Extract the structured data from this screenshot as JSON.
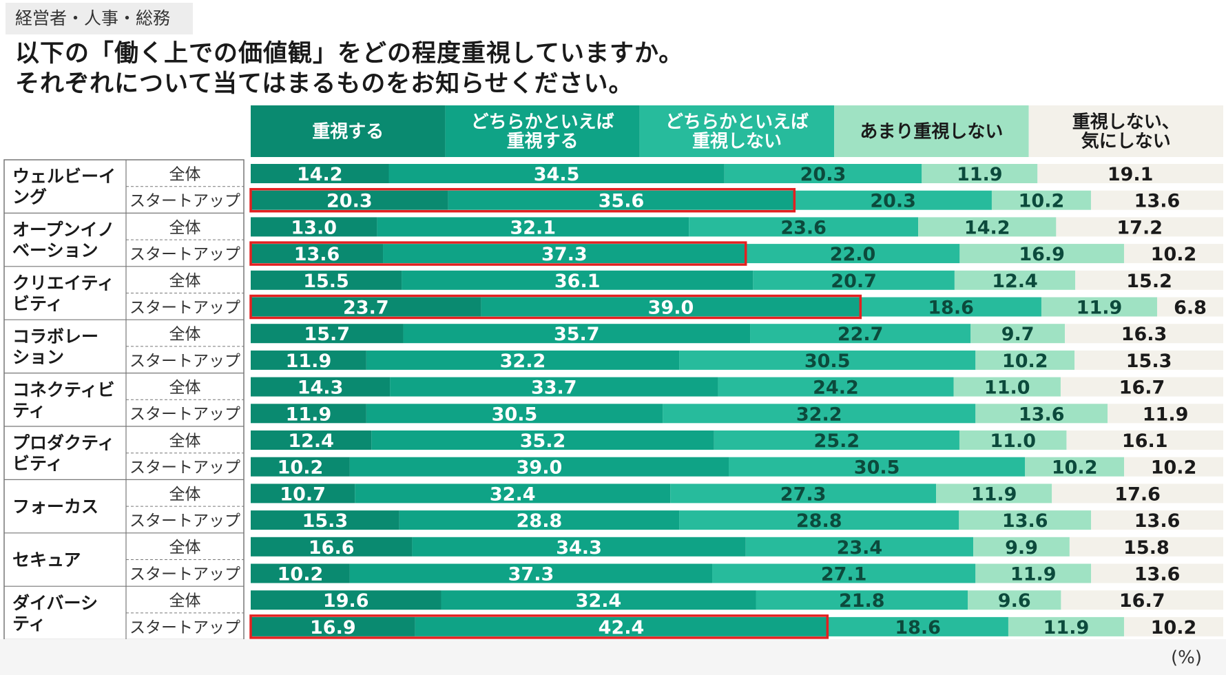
{
  "tag": "経営者・人事・総務",
  "title": {
    "line1": "以下の「働く上での価値観」をどの程度重視していますか。",
    "line2": "それぞれについて当てはまるものをお知らせください。"
  },
  "unit": "(%)",
  "chart_data": {
    "type": "bar",
    "orientation": "horizontal-stacked-100",
    "title": "以下の「働く上での価値観」をどの程度重視していますか。それぞれについて当てはまるものをお知らせください。",
    "xlabel": "",
    "ylabel": "",
    "xlim": [
      0,
      100
    ],
    "legend": [
      "重視する",
      "どちらかといえば\n重視する",
      "どちらかといえば\n重視しない",
      "あまり重視しない",
      "重視しない、\n気にしない"
    ],
    "colors": [
      "#0a8a70",
      "#0fa386",
      "#27bb9c",
      "#9fe2c3",
      "#f3f1ea"
    ],
    "label_colors": [
      "#ffffff",
      "#ffffff",
      "#0c4a3c",
      "#0c4a3c",
      "#1a1a1a"
    ],
    "sub_labels": [
      "全体",
      "スタートアップ"
    ],
    "categories": [
      {
        "name": "ウェルビーイ\nング",
        "rows": [
          [
            14.2,
            34.5,
            20.3,
            11.9,
            19.1
          ],
          [
            20.3,
            35.6,
            20.3,
            10.2,
            13.6
          ]
        ],
        "highlight": [
          false,
          true
        ]
      },
      {
        "name": "オープンイノ\nベーション",
        "rows": [
          [
            13.0,
            32.1,
            23.6,
            14.2,
            17.2
          ],
          [
            13.6,
            37.3,
            22.0,
            16.9,
            10.2
          ]
        ],
        "highlight": [
          false,
          true
        ]
      },
      {
        "name": "クリエイティ\nビティ",
        "rows": [
          [
            15.5,
            36.1,
            20.7,
            12.4,
            15.2
          ],
          [
            23.7,
            39.0,
            18.6,
            11.9,
            6.8
          ]
        ],
        "highlight": [
          false,
          true
        ]
      },
      {
        "name": "コラボレー\nション",
        "rows": [
          [
            15.7,
            35.7,
            22.7,
            9.7,
            16.3
          ],
          [
            11.9,
            32.2,
            30.5,
            10.2,
            15.3
          ]
        ],
        "highlight": [
          false,
          false
        ]
      },
      {
        "name": "コネクティビ\nティ",
        "rows": [
          [
            14.3,
            33.7,
            24.2,
            11.0,
            16.7
          ],
          [
            11.9,
            30.5,
            32.2,
            13.6,
            11.9
          ]
        ],
        "highlight": [
          false,
          false
        ]
      },
      {
        "name": "プロダクティ\nビティ",
        "rows": [
          [
            12.4,
            35.2,
            25.2,
            11.0,
            16.1
          ],
          [
            10.2,
            39.0,
            30.5,
            10.2,
            10.2
          ]
        ],
        "highlight": [
          false,
          false
        ]
      },
      {
        "name": "フォーカス",
        "rows": [
          [
            10.7,
            32.4,
            27.3,
            11.9,
            17.6
          ],
          [
            15.3,
            28.8,
            28.8,
            13.6,
            13.6
          ]
        ],
        "highlight": [
          false,
          false
        ]
      },
      {
        "name": "セキュア",
        "rows": [
          [
            16.6,
            34.3,
            23.4,
            9.9,
            15.8
          ],
          [
            10.2,
            37.3,
            27.1,
            11.9,
            13.6
          ]
        ],
        "highlight": [
          false,
          false
        ]
      },
      {
        "name": "ダイバーシ\nティ",
        "rows": [
          [
            19.6,
            32.4,
            21.8,
            9.6,
            16.7
          ],
          [
            16.9,
            42.4,
            18.6,
            11.9,
            10.2
          ]
        ],
        "highlight": [
          false,
          true
        ]
      }
    ]
  }
}
